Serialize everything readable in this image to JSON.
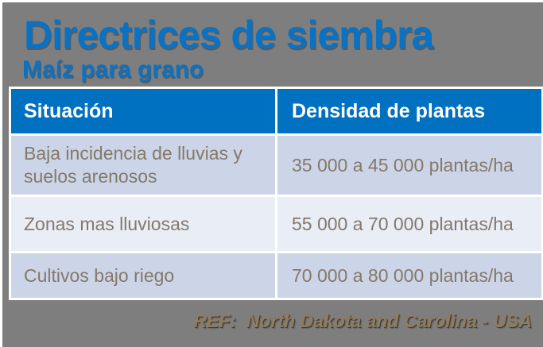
{
  "slide": {
    "title": "Directrices de siembra",
    "subtitle": "Maíz para grano",
    "reference": "REF:  North Dakota and Carolina - USA"
  },
  "table": {
    "columns": [
      "Situación",
      "Densidad de plantas"
    ],
    "rows": [
      {
        "situacion": "Baja incidencia de lluvias y suelos arenosos",
        "densidad": "35 000 a 45 000 plantas/ha"
      },
      {
        "situacion": "Zonas mas lluviosas",
        "densidad": "55 000 a 70 000 plantas/ha"
      },
      {
        "situacion": "Cultivos bajo riego",
        "densidad": "70 000 a 80 000 plantas/ha"
      }
    ]
  },
  "colors": {
    "background": "#7E7E7E",
    "accent_blue": "#0A72C4",
    "header_row_bg": "#0070C0",
    "header_text": "#FFFFFF",
    "row_bg_odd": "#CCD5E7",
    "row_bg_even": "#E9EDF6",
    "cell_text": "#84786A",
    "reference_text": "#8F7C60",
    "table_border": "#FFFFFF"
  }
}
